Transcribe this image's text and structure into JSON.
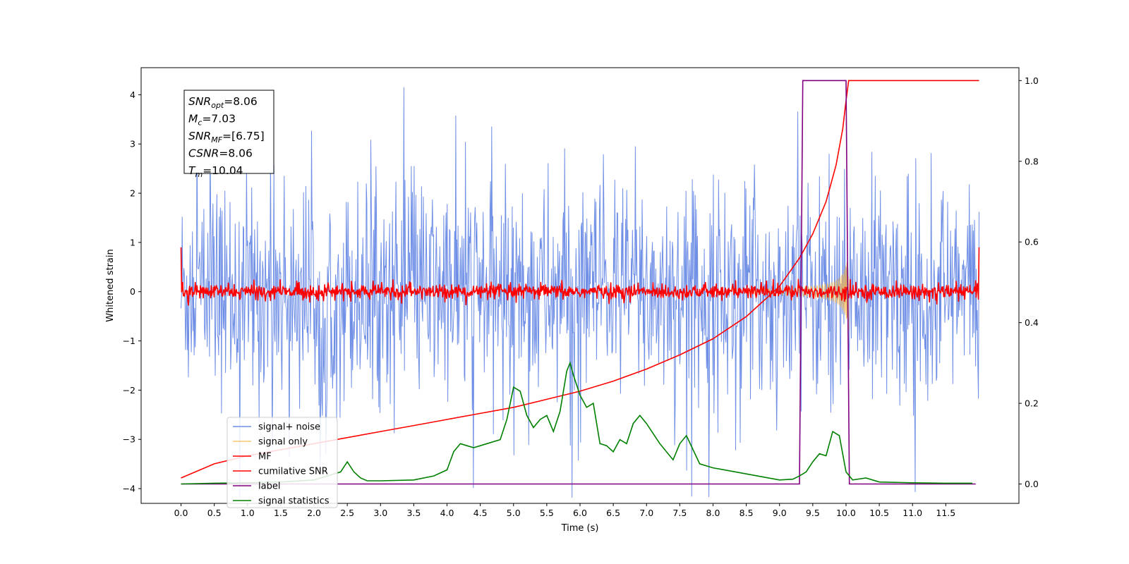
{
  "chart_data": {
    "type": "line",
    "xlabel": "Time (s)",
    "ylabel_left": "Whitened strain",
    "ylabel_right": "",
    "xlim": [
      -0.6,
      12.6
    ],
    "ylim_left": [
      -4.3,
      4.55
    ],
    "ylim_right": [
      -0.048,
      1.032
    ],
    "x_ticks": [
      0.0,
      0.5,
      1.0,
      1.5,
      2.0,
      2.5,
      3.0,
      3.5,
      4.0,
      4.5,
      5.0,
      5.5,
      6.0,
      6.5,
      7.0,
      7.5,
      8.0,
      8.5,
      9.0,
      9.5,
      10.0,
      10.5,
      11.0,
      11.5
    ],
    "x_tick_labels": [
      "0.0",
      "0.5",
      "1.0",
      "1.5",
      "2.0",
      "2.5",
      "3.0",
      "3.5",
      "4.0",
      "4.5",
      "5.0",
      "5.5",
      "6.0",
      "6.5",
      "7.0",
      "7.5",
      "8.0",
      "8.5",
      "9.0",
      "9.5",
      "10.0",
      "10.5",
      "11.0",
      "11.5"
    ],
    "y_ticks_left": [
      -4,
      -3,
      -2,
      -1,
      0,
      1,
      2,
      3,
      4
    ],
    "y_tick_labels_left": [
      "−4",
      "−3",
      "−2",
      "−1",
      "0",
      "1",
      "2",
      "3",
      "4"
    ],
    "y_ticks_right": [
      0.0,
      0.2,
      0.4,
      0.6,
      0.8,
      1.0
    ],
    "y_tick_labels_right": [
      "0.0",
      "0.2",
      "0.4",
      "0.6",
      "0.8",
      "1.0"
    ],
    "grid": false,
    "legend_position": "lower-left",
    "annotation_box": {
      "position": "top-left",
      "lines": [
        {
          "symbol": "SNR",
          "sub": "opt",
          "value": "=8.06"
        },
        {
          "symbol": "M",
          "sub": "c",
          "value": "=7.03"
        },
        {
          "symbol": "SNR",
          "sub": "MF",
          "value": "=[6.75]"
        },
        {
          "symbol": "CSNR",
          "sub": "",
          "value": "=8.06"
        },
        {
          "symbol": "T",
          "sub": "m",
          "value": "=10.04"
        }
      ]
    },
    "series": [
      {
        "name": "signal+ noise",
        "axis": "left",
        "color": "#6f8fe6",
        "kind": "noise-band",
        "t_start": 0.0,
        "t_end": 12.0,
        "envelope": 2.4,
        "peak_max": 4.18
      },
      {
        "name": "signal only",
        "axis": "left",
        "color": "#f5b342",
        "kind": "chirp",
        "t_start": 8.5,
        "t_merge": 10.04,
        "peak_amplitude": 0.95
      },
      {
        "name": "MF",
        "axis": "left",
        "color": "#ff0000",
        "kind": "noise-band",
        "t_start": 0.0,
        "t_end": 12.0,
        "envelope": 0.16,
        "peak_max": 0.9
      },
      {
        "name": "cumilative SNR",
        "axis": "right",
        "color": "#ff0000",
        "kind": "line",
        "x": [
          0.0,
          0.5,
          1.0,
          1.5,
          2.0,
          2.5,
          3.0,
          3.5,
          4.0,
          4.5,
          5.0,
          5.5,
          6.0,
          6.5,
          7.0,
          7.5,
          8.0,
          8.5,
          9.0,
          9.3,
          9.5,
          9.7,
          9.85,
          9.95,
          10.0,
          10.04,
          12.0
        ],
        "y": [
          0.015,
          0.05,
          0.07,
          0.085,
          0.1,
          0.115,
          0.13,
          0.145,
          0.16,
          0.175,
          0.19,
          0.21,
          0.23,
          0.255,
          0.285,
          0.32,
          0.36,
          0.415,
          0.49,
          0.56,
          0.62,
          0.7,
          0.79,
          0.88,
          0.95,
          1.0,
          1.0
        ]
      },
      {
        "name": "label",
        "axis": "right",
        "color": "#800080",
        "kind": "line",
        "x": [
          0.0,
          9.3,
          9.35,
          10.0,
          10.05,
          11.95
        ],
        "y": [
          0.0,
          0.0,
          1.0,
          1.0,
          0.0,
          0.0
        ]
      },
      {
        "name": "signal statistics",
        "axis": "right",
        "color": "#008000",
        "kind": "line",
        "x": [
          0.0,
          0.5,
          1.0,
          1.5,
          2.0,
          2.2,
          2.4,
          2.5,
          2.6,
          2.7,
          2.8,
          3.0,
          3.5,
          3.8,
          4.0,
          4.1,
          4.2,
          4.3,
          4.4,
          4.6,
          4.8,
          4.9,
          5.0,
          5.1,
          5.2,
          5.3,
          5.4,
          5.5,
          5.6,
          5.7,
          5.8,
          5.85,
          5.9,
          6.0,
          6.1,
          6.2,
          6.3,
          6.4,
          6.5,
          6.6,
          6.7,
          6.8,
          6.9,
          7.0,
          7.2,
          7.4,
          7.5,
          7.6,
          7.8,
          8.0,
          8.5,
          9.0,
          9.2,
          9.3,
          9.4,
          9.5,
          9.6,
          9.7,
          9.8,
          9.9,
          10.0,
          10.1,
          10.3,
          10.5,
          11.0,
          11.5,
          11.9
        ],
        "y": [
          0.0,
          0.002,
          0.003,
          0.005,
          0.01,
          0.02,
          0.03,
          0.055,
          0.03,
          0.015,
          0.008,
          0.008,
          0.01,
          0.02,
          0.035,
          0.08,
          0.1,
          0.095,
          0.09,
          0.1,
          0.11,
          0.16,
          0.24,
          0.23,
          0.17,
          0.14,
          0.16,
          0.17,
          0.13,
          0.18,
          0.28,
          0.3,
          0.27,
          0.22,
          0.19,
          0.2,
          0.1,
          0.095,
          0.08,
          0.11,
          0.1,
          0.15,
          0.17,
          0.15,
          0.1,
          0.06,
          0.1,
          0.12,
          0.05,
          0.04,
          0.025,
          0.01,
          0.012,
          0.02,
          0.03,
          0.055,
          0.075,
          0.07,
          0.13,
          0.12,
          0.03,
          0.01,
          0.015,
          0.005,
          0.003,
          0.002,
          0.002
        ]
      }
    ]
  }
}
